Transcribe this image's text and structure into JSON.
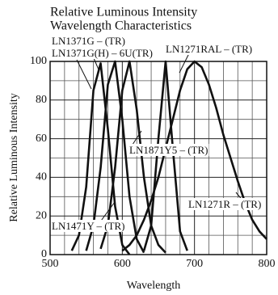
{
  "chart_data": {
    "type": "line",
    "title": "Relative Luminous Intensity",
    "subtitle": "Wavelength Characteristics",
    "x_label": "Wavelength",
    "y_label": "Relative Luminous Intensity",
    "x": [
      520,
      530,
      540,
      550,
      560,
      570,
      580,
      590,
      600,
      610,
      620,
      630,
      640,
      650,
      660,
      670,
      680,
      690,
      700,
      710,
      720,
      730,
      740,
      750,
      760,
      770,
      780,
      790,
      800
    ],
    "series": [
      {
        "name": "LN1371G – (TR)",
        "color": "#111111",
        "values": [
          null,
          2,
          10,
          35,
          85,
          99,
          65,
          25,
          5,
          0,
          null,
          null,
          null,
          null,
          null,
          null,
          null,
          null,
          null,
          null,
          null,
          null,
          null,
          null,
          null,
          null,
          null,
          null,
          null
        ]
      },
      {
        "name": "LN1471Y – (TR)",
        "color": "#111111",
        "values": [
          null,
          null,
          null,
          2,
          15,
          45,
          88,
          100,
          70,
          30,
          8,
          1,
          null,
          null,
          null,
          null,
          null,
          null,
          null,
          null,
          null,
          null,
          null,
          null,
          null,
          null,
          null,
          null,
          null
        ]
      },
      {
        "name": "LN1871Y5 – (TR)",
        "color": "#111111",
        "values": [
          null,
          null,
          null,
          null,
          null,
          3,
          15,
          45,
          85,
          100,
          75,
          40,
          15,
          5,
          1,
          null,
          null,
          null,
          null,
          null,
          null,
          null,
          null,
          null,
          null,
          null,
          null,
          null,
          null
        ]
      },
      {
        "name": "LN1271RAL – (TR)",
        "color": "#111111",
        "values": [
          null,
          null,
          null,
          null,
          null,
          null,
          null,
          null,
          null,
          null,
          null,
          2,
          15,
          60,
          100,
          55,
          12,
          2,
          null,
          null,
          null,
          null,
          null,
          null,
          null,
          null,
          null,
          null,
          null
        ]
      },
      {
        "name": "LN1271R – (TR)",
        "color": "#111111",
        "values": [
          null,
          null,
          null,
          null,
          null,
          null,
          null,
          null,
          2,
          5,
          10,
          18,
          28,
          40,
          55,
          70,
          85,
          96,
          100,
          97,
          88,
          76,
          62,
          50,
          38,
          27,
          18,
          12,
          8
        ]
      }
    ],
    "annotations": [
      "LN1371G(H) – 6U(TR)"
    ],
    "xlim": [
      500,
      800
    ],
    "xticks": [
      500,
      600,
      700,
      800
    ],
    "ylim": [
      0,
      100
    ],
    "yticks": [
      0,
      20,
      40,
      60,
      80,
      100
    ],
    "grid": true
  }
}
